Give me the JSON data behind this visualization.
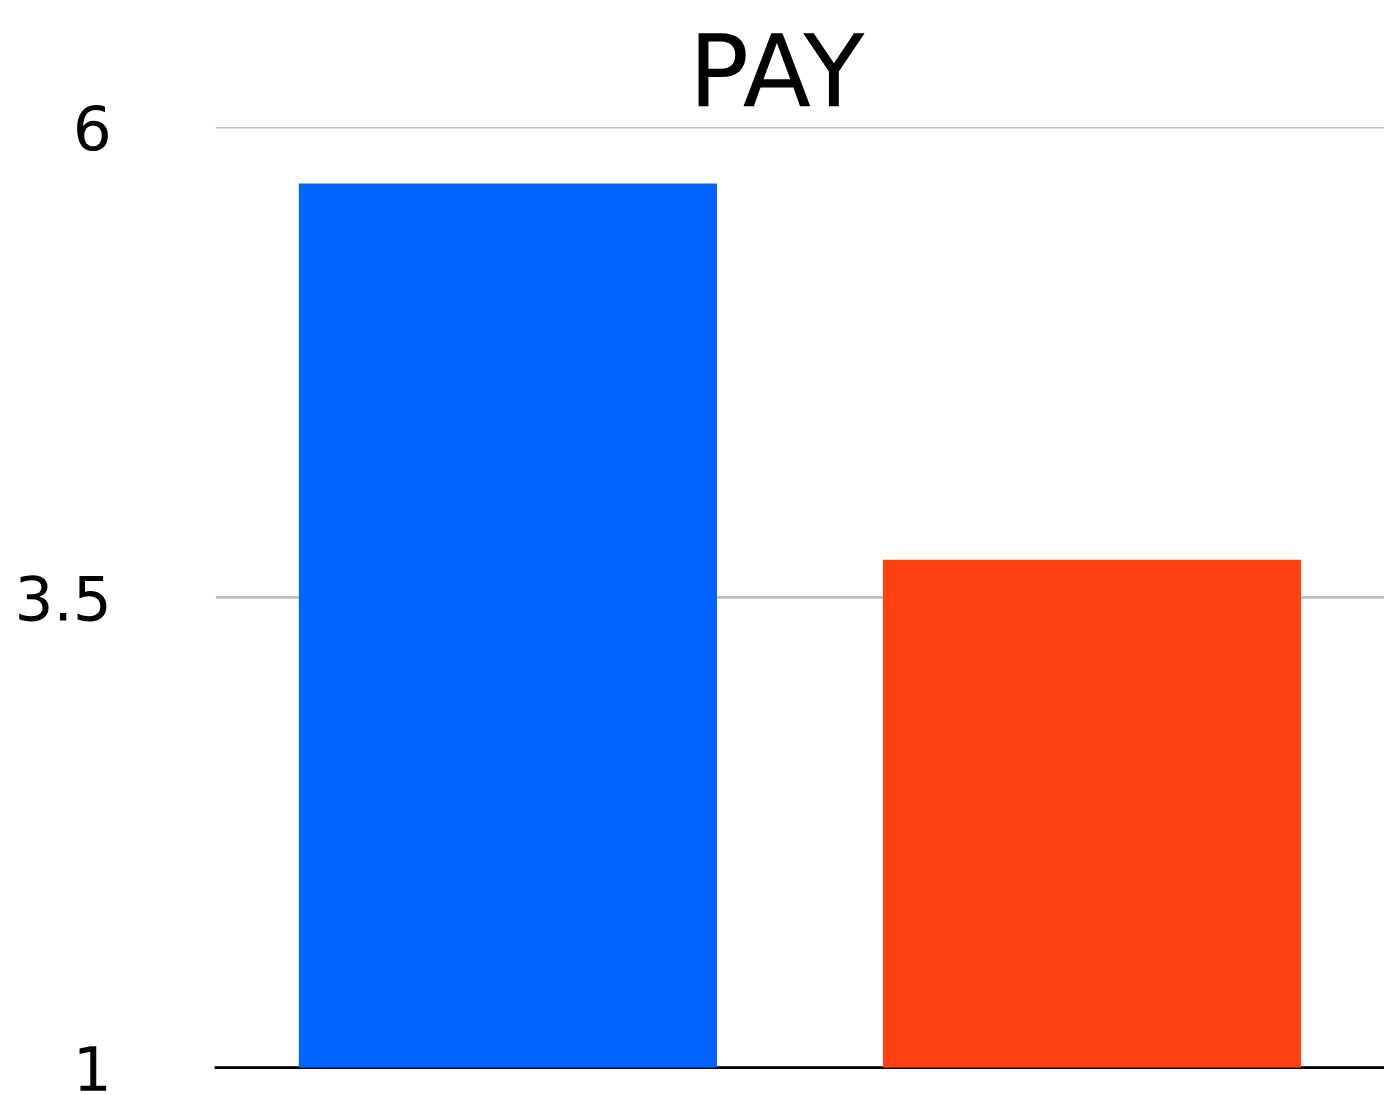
{
  "chart_data": {
    "type": "bar",
    "title": "PAY",
    "categories": [
      null,
      null
    ],
    "values": [
      5.7,
      3.7
    ],
    "colors": [
      "#0062ff",
      "#ff4216"
    ],
    "ylim": [
      1,
      6
    ],
    "yticks": [
      1,
      3.5,
      6
    ],
    "grid": "y"
  }
}
